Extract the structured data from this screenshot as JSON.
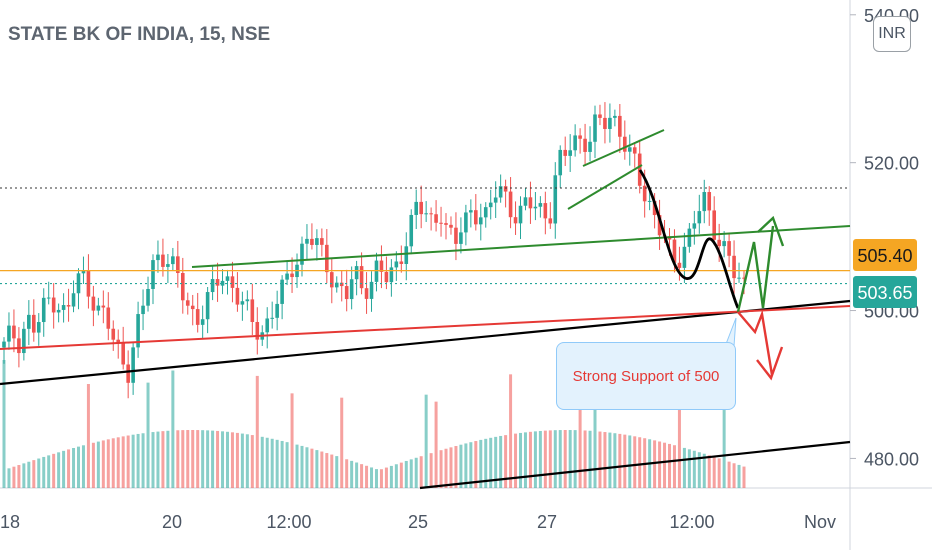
{
  "header": {
    "title": "STATE BK OF INDIA, 15, NSE"
  },
  "currency_button": {
    "label": "INR"
  },
  "callout": {
    "text": "Strong Support of 500"
  },
  "colors": {
    "up": "#26a69a",
    "down": "#ef5350",
    "green_line": "#2e8b2e",
    "red_line": "#e53935",
    "orange_line": "#f5a623",
    "black_line": "#000000",
    "last_price_bg": "#26a69a",
    "prev_level_bg": "#f5a623",
    "callout_bg": "#e3f2fd",
    "callout_border": "#90caf9",
    "callout_text": "#e53935"
  },
  "chart_data": {
    "type": "candlestick",
    "title": "STATE BK OF INDIA, 15, NSE",
    "ylim": [
      476,
      542
    ],
    "price_ticks": [
      {
        "value": 520,
        "label": "520.00"
      },
      {
        "value": 500,
        "label": "500.00"
      },
      {
        "value": 480,
        "label": "480.00"
      },
      {
        "value": 540,
        "label": "540.00"
      }
    ],
    "time_ticks": [
      "18",
      "20",
      "12:00",
      "25",
      "27",
      "12:00",
      "Nov"
    ],
    "labels": [
      {
        "value": 505.4,
        "label": "505.40",
        "style": "orange"
      },
      {
        "value": 503.65,
        "label": "503.65",
        "style": "green"
      }
    ],
    "seed": [
      495,
      497,
      496,
      499,
      497,
      500,
      502,
      501,
      499,
      503,
      505,
      503,
      500,
      499,
      496,
      494,
      492,
      497,
      501,
      506,
      508,
      507,
      505,
      502,
      500,
      499,
      501,
      503,
      505,
      504,
      502,
      500,
      498,
      497,
      499,
      501,
      503,
      506,
      508,
      510,
      509,
      507,
      505,
      503,
      502,
      505,
      503,
      504,
      506,
      504,
      505,
      508,
      511,
      514,
      513,
      512,
      514,
      510,
      509,
      512,
      514,
      513,
      512,
      516,
      517,
      514,
      512,
      514,
      515,
      514,
      512,
      519,
      521,
      524,
      523,
      522,
      525,
      526,
      527,
      524,
      521,
      520,
      517,
      514,
      511,
      509,
      507,
      508,
      510,
      513,
      515,
      512,
      509,
      507,
      504,
      503.65
    ]
  }
}
